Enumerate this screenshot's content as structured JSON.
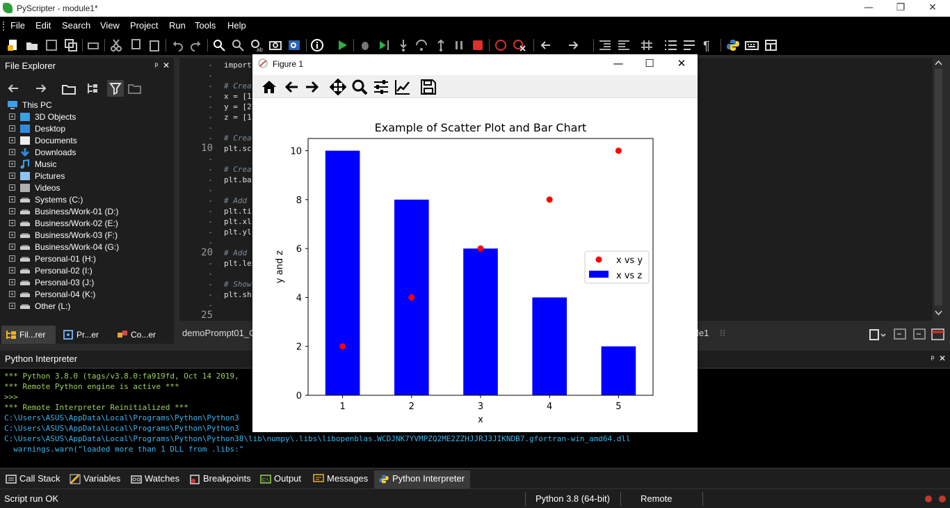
{
  "window": {
    "title": "PyScripter - module1*",
    "min": "—",
    "max": "❐",
    "close": "✕"
  },
  "menu": [
    "File",
    "Edit",
    "Search",
    "View",
    "Project",
    "Run",
    "Tools",
    "Help"
  ],
  "explorer": {
    "title": "File Explorer",
    "pin": "ᵖ",
    "close": "✕",
    "root": "This PC",
    "items": [
      {
        "label": "3D Objects",
        "icon": "3d-objects-icon"
      },
      {
        "label": "Desktop",
        "icon": "desktop-icon"
      },
      {
        "label": "Documents",
        "icon": "documents-icon"
      },
      {
        "label": "Downloads",
        "icon": "downloads-icon"
      },
      {
        "label": "Music",
        "icon": "music-icon"
      },
      {
        "label": "Pictures",
        "icon": "pictures-icon"
      },
      {
        "label": "Videos",
        "icon": "videos-icon"
      },
      {
        "label": "Systems (C:)",
        "icon": "drive-icon"
      },
      {
        "label": "Business/Work-01 (D:)",
        "icon": "drive-icon"
      },
      {
        "label": "Business/Work-02 (E:)",
        "icon": "drive-icon"
      },
      {
        "label": "Business/Work-03 (F:)",
        "icon": "drive-icon"
      },
      {
        "label": "Business/Work-04 (G:)",
        "icon": "drive-icon"
      },
      {
        "label": "Personal-01 (H:)",
        "icon": "drive-icon"
      },
      {
        "label": "Personal-02 (I:)",
        "icon": "drive-icon"
      },
      {
        "label": "Personal-03 (J:)",
        "icon": "drive-icon"
      },
      {
        "label": "Personal-04 (K:)",
        "icon": "drive-icon"
      },
      {
        "label": "Other (L:)",
        "icon": "drive-icon"
      }
    ],
    "expander": "+"
  },
  "left_tabs": [
    {
      "label": "Fil...rer",
      "active": true
    },
    {
      "label": "Pr...er",
      "active": false
    },
    {
      "label": "Co...er",
      "active": false
    }
  ],
  "editor": {
    "lines": [
      {
        "gutter": "-",
        "code": "import",
        "type": "code"
      },
      {
        "gutter": "-",
        "code": "",
        "type": "code"
      },
      {
        "gutter": "-",
        "code": "# Crea",
        "type": "comment"
      },
      {
        "gutter": "-",
        "code": "x = [1",
        "type": "code"
      },
      {
        "gutter": "-",
        "code": "y = [2",
        "type": "code"
      },
      {
        "gutter": "-",
        "code": "z = [1",
        "type": "code"
      },
      {
        "gutter": "-",
        "code": "",
        "type": "code"
      },
      {
        "gutter": "-",
        "code": "# Crea",
        "type": "comment"
      },
      {
        "gutter": "10",
        "code": "plt.sc",
        "type": "code"
      },
      {
        "gutter": "-",
        "code": "",
        "type": "code"
      },
      {
        "gutter": "-",
        "code": "# Crea",
        "type": "comment"
      },
      {
        "gutter": "-",
        "code": "plt.ba",
        "type": "code"
      },
      {
        "gutter": "-",
        "code": "",
        "type": "code"
      },
      {
        "gutter": "-",
        "code": "# Add",
        "type": "comment"
      },
      {
        "gutter": "-",
        "code": "plt.ti",
        "type": "code"
      },
      {
        "gutter": "-",
        "code": "plt.xl",
        "type": "code"
      },
      {
        "gutter": "-",
        "code": "plt.yl",
        "type": "code"
      },
      {
        "gutter": "-",
        "code": "",
        "type": "code"
      },
      {
        "gutter": "20",
        "code": "# Add",
        "type": "comment"
      },
      {
        "gutter": "-",
        "code": "plt.le",
        "type": "code"
      },
      {
        "gutter": "-",
        "code": "",
        "type": "code"
      },
      {
        "gutter": "-",
        "code": "# Show",
        "type": "comment"
      },
      {
        "gutter": "-",
        "code": "plt.sh",
        "type": "code"
      },
      {
        "gutter": "-",
        "code": "",
        "type": "code"
      },
      {
        "gutter": "25",
        "code": "",
        "type": "code"
      }
    ]
  },
  "editor_tabs": {
    "left": "demoPrompt01_C",
    "right": "le1",
    "right_close": "⁝⁝"
  },
  "interpreter": {
    "title": "Python Interpreter",
    "pin": "ᵖ",
    "close": "✕",
    "lines": [
      {
        "text": "*** Python 3.8.0 (tags/v3.8.0:fa919fd, Oct 14 2019,",
        "color": "green"
      },
      {
        "text": "*** Remote Python engine is active ***",
        "color": "green"
      },
      {
        "text": ">>>",
        "color": "green"
      },
      {
        "text": "*** Remote Interpreter Reinitialized ***",
        "color": "green"
      },
      {
        "text": "C:\\Users\\ASUS\\AppData\\Local\\Programs\\Python\\Python3",
        "color": "cyan"
      },
      {
        "text": "C:\\Users\\ASUS\\AppData\\Local\\Programs\\Python\\Python3",
        "color": "cyan"
      },
      {
        "text": "C:\\Users\\ASUS\\AppData\\Local\\Programs\\Python\\Python38\\lib\\numpy\\.libs\\libopenblas.WCDJNK7YVMPZQ2ME2ZZHJJRJ3JIKNDB7.gfortran-win_amd64.dll",
        "color": "cyan"
      },
      {
        "text": "  warnings.warn(\"loaded more than 1 DLL from .libs:\"",
        "color": "cyan"
      }
    ]
  },
  "bottom_tabs": [
    {
      "label": "Call Stack",
      "icon": "call-stack-icon",
      "active": false
    },
    {
      "label": "Variables",
      "icon": "variables-icon",
      "active": false
    },
    {
      "label": "Watches",
      "icon": "watches-icon",
      "active": false
    },
    {
      "label": "Breakpoints",
      "icon": "breakpoints-icon",
      "active": false
    },
    {
      "label": "Output",
      "icon": "output-icon",
      "active": false
    },
    {
      "label": "Messages",
      "icon": "messages-icon",
      "active": false
    },
    {
      "label": "Python Interpreter",
      "icon": "python-icon",
      "active": true
    }
  ],
  "status": {
    "left": "Script run OK",
    "python": "Python 3.8 (64-bit)",
    "engine": "Remote"
  },
  "figure": {
    "title": "Figure 1",
    "min": "—",
    "max": "☐",
    "close": "✕"
  },
  "chart_data": {
    "type": "bar",
    "title": "Example of Scatter Plot and Bar Chart",
    "xlabel": "x",
    "ylabel": "y and z",
    "categories": [
      1,
      2,
      3,
      4,
      5
    ],
    "xlim": [
      0.5,
      5.5
    ],
    "ylim": [
      0,
      10.5
    ],
    "xticks": [
      "1",
      "2",
      "3",
      "4",
      "5"
    ],
    "yticks": [
      0,
      2,
      4,
      6,
      8,
      10
    ],
    "series": [
      {
        "name": "x vs y",
        "kind": "scatter",
        "color": "#ff0000",
        "x": [
          1,
          2,
          3,
          4,
          5
        ],
        "values": [
          2,
          4,
          6,
          8,
          10
        ]
      },
      {
        "name": "x vs z",
        "kind": "bar",
        "color": "#0000ff",
        "x": [
          1,
          2,
          3,
          4,
          5
        ],
        "values": [
          10,
          8,
          6,
          4,
          2
        ]
      }
    ],
    "legend": "center-right",
    "grid": false
  }
}
